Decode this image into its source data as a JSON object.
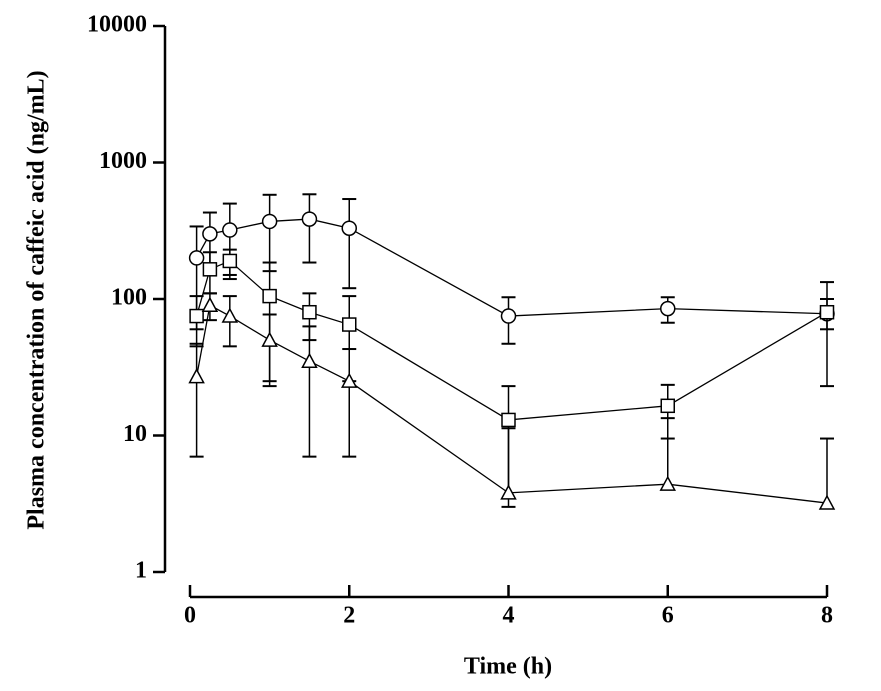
{
  "chart_data": {
    "type": "line",
    "x_label": "Time (h)",
    "y_label": "Plasma concentration of caffeic acid (ng/mL)",
    "log_y": true,
    "xlim": [
      0,
      8
    ],
    "xticks": [
      0,
      2,
      4,
      6,
      8
    ],
    "ylim": [
      1,
      10000
    ],
    "yticks": [
      1,
      10,
      100,
      1000,
      10000
    ],
    "x": [
      0.083,
      0.25,
      0.5,
      1,
      1.5,
      2,
      4,
      6,
      8
    ],
    "series": [
      {
        "marker": "circle",
        "color": "#000000",
        "values": [
          200,
          300,
          320,
          370,
          385,
          330,
          75,
          85,
          78
        ],
        "errors": [
          140,
          130,
          180,
          210,
          200,
          210,
          28,
          18,
          55
        ]
      },
      {
        "marker": "square",
        "color": "#000000",
        "values": [
          75,
          165,
          190,
          105,
          80,
          65,
          13,
          16.5,
          80
        ],
        "errors": [
          30,
          55,
          40,
          80,
          30,
          40,
          10,
          7,
          20
        ]
      },
      {
        "marker": "triangle",
        "color": "#000000",
        "values": [
          27,
          90,
          75,
          50,
          35,
          25,
          3.8,
          4.4,
          3.2
        ],
        "errors": [
          20,
          20,
          30,
          27,
          28,
          18,
          7.5,
          9,
          6.3
        ]
      }
    ]
  }
}
